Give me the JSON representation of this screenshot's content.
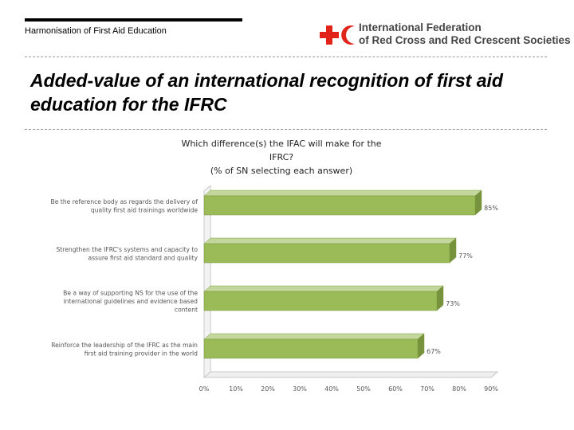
{
  "header": {
    "text": "Harmonisation of First Aid Education",
    "org_line1": "International Federation",
    "org_line2": "of Red Cross and Red Crescent Societies"
  },
  "slide_title": "Added-value of an international recognition of first aid education for the IFRC",
  "colors": {
    "bar_fill": "#9bbb59",
    "bar_edge": "#7a9a3f",
    "logo_red": "#e2231a",
    "text": "#444444"
  },
  "chart_data": {
    "type": "bar",
    "orientation": "horizontal",
    "title_lines": [
      "Which difference(s) the IFAC will make for the",
      "IFRC?",
      "(% of SN selecting each answer)"
    ],
    "categories": [
      [
        "Be the reference body as regards the delivery of",
        "quality first aid trainings worldwide"
      ],
      [
        "Strengthen the IFRC's systems and capacity to",
        "assure first aid standard and quality"
      ],
      [
        "Be a way of supporting NS for the use of the",
        "international guidelines and evidence based",
        "content"
      ],
      [
        "Reinforce the leadership of the IFRC as the main",
        "first aid training provider in the world"
      ]
    ],
    "values": [
      85,
      77,
      73,
      67
    ],
    "value_labels": [
      "85%",
      "77%",
      "73%",
      "67%"
    ],
    "xlim": [
      0,
      90
    ],
    "xticks": [
      "0%",
      "10%",
      "20%",
      "30%",
      "40%",
      "50%",
      "60%",
      "70%",
      "80%",
      "90%"
    ],
    "grid": false,
    "legend": "none"
  }
}
